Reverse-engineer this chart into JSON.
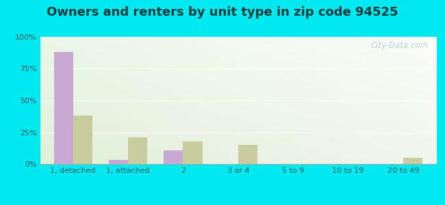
{
  "title": "Owners and renters by unit type in zip code 94525",
  "categories": [
    "1, detached",
    "1, attached",
    "2",
    "3 or 4",
    "5 to 9",
    "10 to 19",
    "20 to 49"
  ],
  "owner_values": [
    88,
    3,
    11,
    0,
    0,
    0,
    0
  ],
  "renter_values": [
    38,
    21,
    18,
    15,
    0,
    0,
    5
  ],
  "owner_color": "#c9a8d4",
  "renter_color": "#c8cc9f",
  "ylim": [
    0,
    100
  ],
  "yticks": [
    0,
    25,
    50,
    75,
    100
  ],
  "ytick_labels": [
    "0%",
    "25%",
    "50%",
    "75%",
    "100%"
  ],
  "background_outer": "#00e8f0",
  "grid_color": "#ffffff",
  "bar_width": 0.35,
  "title_fontsize": 13,
  "watermark": "City-Data.com",
  "text_color": "#2a5a5a"
}
